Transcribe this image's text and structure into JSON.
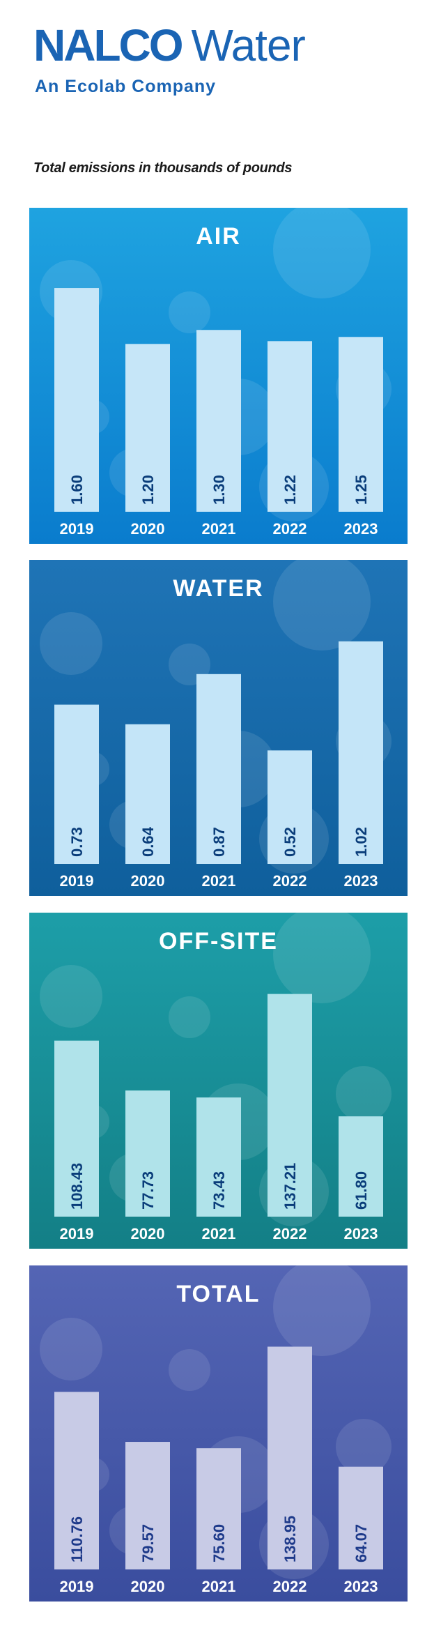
{
  "header": {
    "brand": "NALCO",
    "product": "Water",
    "tagline": "An Ecolab Company"
  },
  "subtitle": "Total emissions in thousands of pounds",
  "colors": {
    "brand_blue": "#1a64b4"
  },
  "chart_data": [
    {
      "type": "bar",
      "title": "AIR",
      "categories": [
        "2019",
        "2020",
        "2021",
        "2022",
        "2023"
      ],
      "values": [
        1.6,
        1.2,
        1.3,
        1.22,
        1.25
      ],
      "labels": [
        "1.60",
        "1.20",
        "1.30",
        "1.22",
        "1.25"
      ],
      "ylim": [
        0,
        1.7
      ],
      "colors": {
        "bg_top": "#1fa3e0",
        "bg_bottom": "#0a7ccd",
        "bar": "#c6e6f8",
        "label": "#0a3d7a"
      }
    },
    {
      "type": "bar",
      "title": "WATER",
      "categories": [
        "2019",
        "2020",
        "2021",
        "2022",
        "2023"
      ],
      "values": [
        0.73,
        0.64,
        0.87,
        0.52,
        1.02
      ],
      "labels": [
        "0.73",
        "0.64",
        "0.87",
        "0.52",
        "1.02"
      ],
      "ylim": [
        0,
        1.09
      ],
      "colors": {
        "bg_top": "#1f74b6",
        "bg_bottom": "#0f5f9c",
        "bar": "#c4e5f8",
        "label": "#0a3d7a"
      }
    },
    {
      "type": "bar",
      "title": "OFF-SITE",
      "categories": [
        "2019",
        "2020",
        "2021",
        "2022",
        "2023"
      ],
      "values": [
        108.43,
        77.73,
        73.43,
        137.21,
        61.8
      ],
      "labels": [
        "108.43",
        "77.73",
        "73.43",
        "137.21",
        "61.80"
      ],
      "ylim": [
        0,
        146.5
      ],
      "colors": {
        "bg_top": "#1d9ea8",
        "bg_bottom": "#137f86",
        "bar": "#b0e3ea",
        "label": "#0a3d7a"
      }
    },
    {
      "type": "bar",
      "title": "TOTAL",
      "categories": [
        "2019",
        "2020",
        "2021",
        "2022",
        "2023"
      ],
      "values": [
        110.76,
        79.57,
        75.6,
        138.95,
        64.07
      ],
      "labels": [
        "110.76",
        "79.57",
        "75.60",
        "138.95",
        "64.07"
      ],
      "ylim": [
        0,
        148.3
      ],
      "colors": {
        "bg_top": "#5465b4",
        "bg_bottom": "#3a4d9e",
        "bar": "#c8cbe6",
        "label": "#1e3a8a"
      }
    }
  ]
}
